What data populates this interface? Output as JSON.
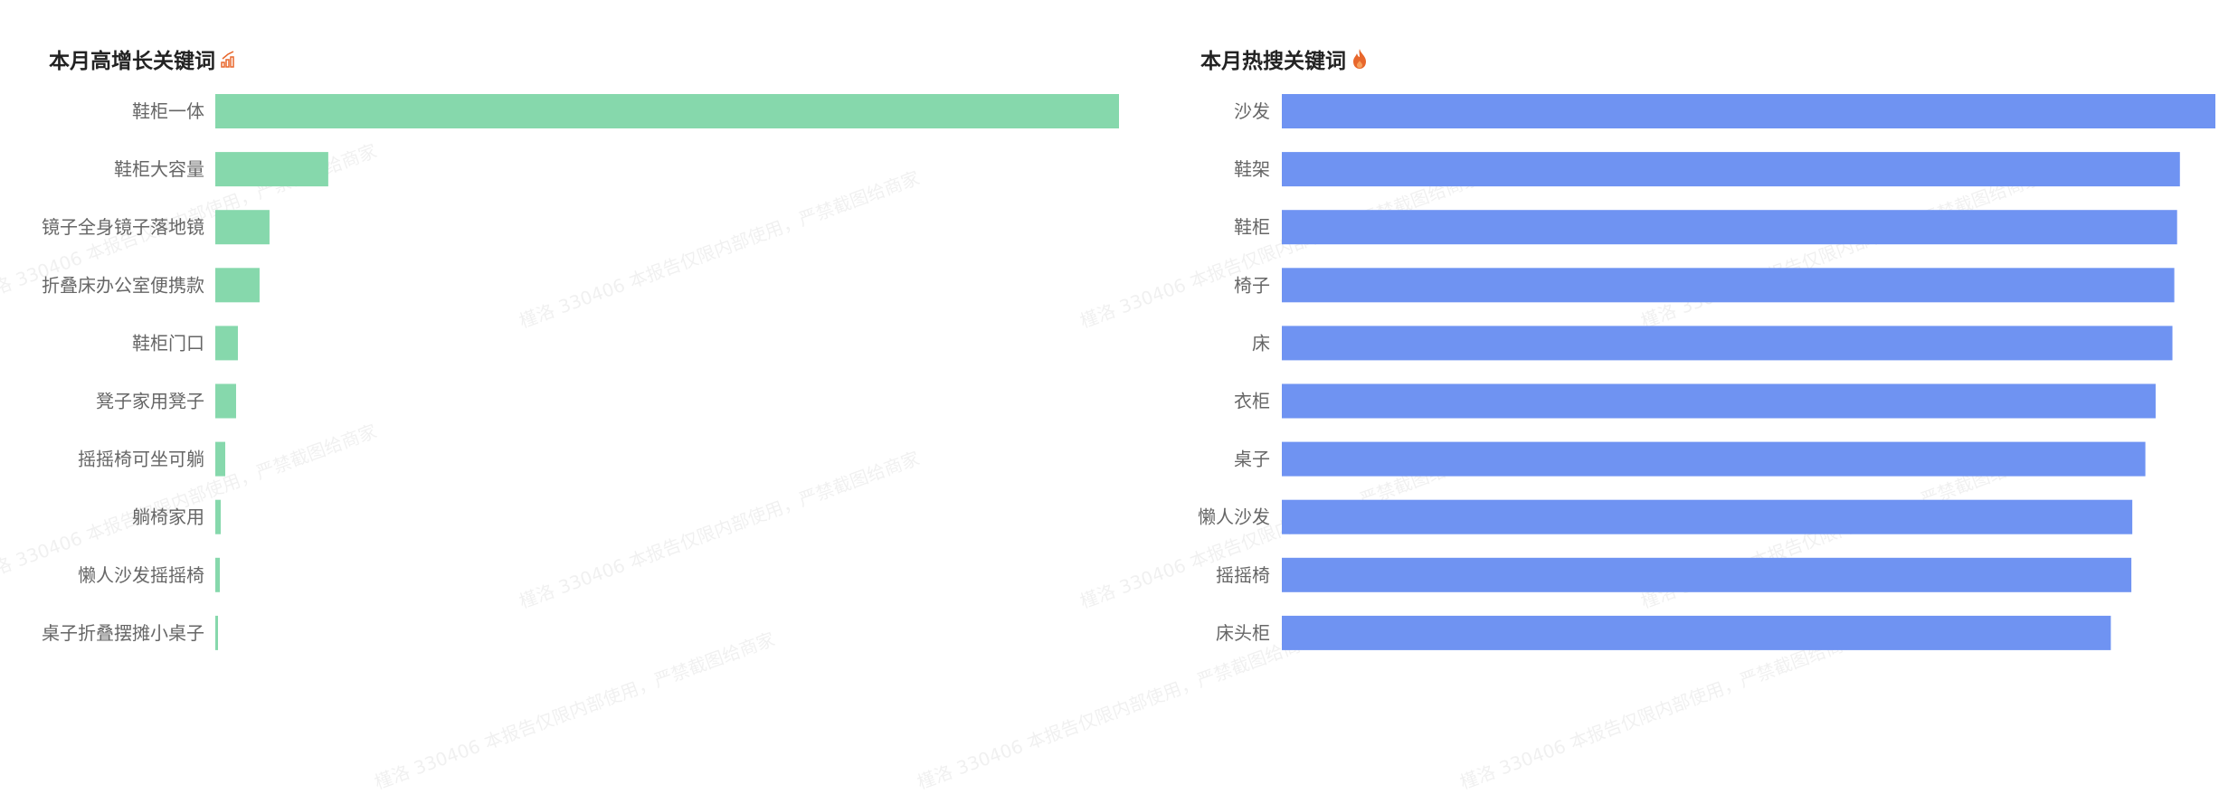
{
  "watermark": "槿洛  330406 本报告仅限内部使用，严禁截图给商家",
  "chart_data": [
    {
      "type": "bar",
      "orientation": "horizontal",
      "title": "本月高增长关键词",
      "title_icon": "growth-chart-icon",
      "color": "#86d8ac",
      "categories": [
        "鞋柜一体",
        "鞋柜大容量",
        "镜子全身镜子落地镜",
        "折叠床办公室便携款",
        "鞋柜门口",
        "凳子家用凳子",
        "摇摇椅可坐可躺",
        "躺椅家用",
        "懒人沙发摇摇椅",
        "桌子折叠摆摊小桌子"
      ],
      "values": [
        100,
        12.5,
        6.0,
        4.9,
        2.5,
        2.3,
        1.1,
        0.6,
        0.5,
        0.3
      ],
      "value_unit": "relative to largest (%)",
      "grid": false,
      "axis_labels_shown": false
    },
    {
      "type": "bar",
      "orientation": "horizontal",
      "title": "本月热搜关键词",
      "title_icon": "fire-icon",
      "color": "#6f93f2",
      "categories": [
        "沙发",
        "鞋架",
        "鞋柜",
        "椅子",
        "床",
        "衣柜",
        "桌子",
        "懒人沙发",
        "摇摇椅",
        "床头柜"
      ],
      "values": [
        100,
        96.2,
        95.9,
        95.6,
        95.4,
        93.6,
        92.5,
        91.1,
        91.0,
        88.8
      ],
      "value_unit": "relative to largest (%)",
      "grid": false,
      "axis_labels_shown": false
    }
  ]
}
